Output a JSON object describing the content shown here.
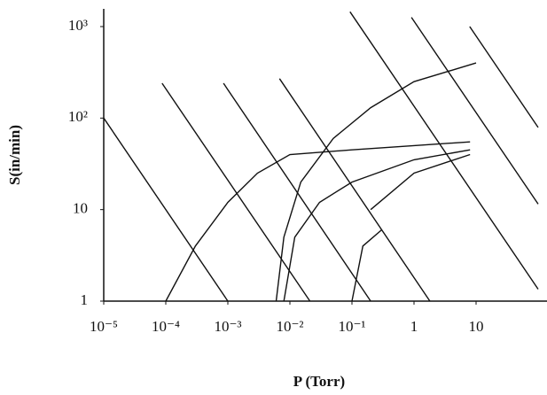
{
  "chart_data": {
    "type": "line",
    "xlabel": "P (Torr)",
    "ylabel": "S(in/min)",
    "xscale": "log",
    "yscale": "log",
    "xlim": [
      1e-05,
      100
    ],
    "ylim": [
      1,
      1000
    ],
    "xticks": [
      {
        "value": 1e-05,
        "label": "10⁻⁵"
      },
      {
        "value": 0.0001,
        "label": "10⁻⁴"
      },
      {
        "value": 0.001,
        "label": "10⁻³"
      },
      {
        "value": 0.01,
        "label": "10⁻²"
      },
      {
        "value": 0.1,
        "label": "10⁻¹"
      },
      1,
      10
    ],
    "yticks": [
      1,
      10,
      {
        "value": 100,
        "label": "10²"
      },
      {
        "value": 1000,
        "label": "10³"
      }
    ],
    "series": [
      {
        "color": "#111111",
        "x": [
          1e-05,
          0.001
        ],
        "values": [
          100,
          1
        ]
      },
      {
        "color": "#111111",
        "x": [
          8.7e-05,
          0.021
        ],
        "values": [
          240,
          1
        ]
      },
      {
        "color": "#111111",
        "x": [
          0.00085,
          0.2
        ],
        "values": [
          240,
          1
        ]
      },
      {
        "color": "#111111",
        "x": [
          0.0068,
          1.8
        ],
        "values": [
          270,
          1
        ]
      },
      {
        "color": "#111111",
        "x": [
          0.093,
          100
        ],
        "values": [
          1450,
          1.35
        ]
      },
      {
        "color": "#111111",
        "x": [
          0.91,
          100
        ],
        "values": [
          1260,
          11.5
        ]
      },
      {
        "color": "#111111",
        "x": [
          7.9,
          100
        ],
        "values": [
          1000,
          79
        ]
      },
      {
        "color": "#111111",
        "x": [
          0.0001,
          0.0003,
          0.001,
          0.003,
          0.01,
          0.1,
          1,
          8
        ],
        "values": [
          1,
          4,
          12,
          25,
          40,
          45,
          50,
          55
        ]
      },
      {
        "color": "#111111",
        "x": [
          0.006,
          0.008,
          0.015,
          0.05,
          0.2,
          1,
          10
        ],
        "values": [
          1,
          5,
          20,
          60,
          130,
          250,
          400
        ]
      },
      {
        "color": "#111111",
        "x": [
          0.008,
          0.012,
          0.03,
          0.1,
          1,
          8
        ],
        "values": [
          1,
          5,
          12,
          20,
          35,
          45
        ]
      },
      {
        "color": "#111111",
        "x": [
          0.1,
          0.15,
          0.3
        ],
        "values": [
          1,
          4,
          6
        ]
      },
      {
        "color": "#111111",
        "x": [
          0.2,
          1,
          8
        ],
        "values": [
          10,
          25,
          40
        ]
      }
    ]
  }
}
